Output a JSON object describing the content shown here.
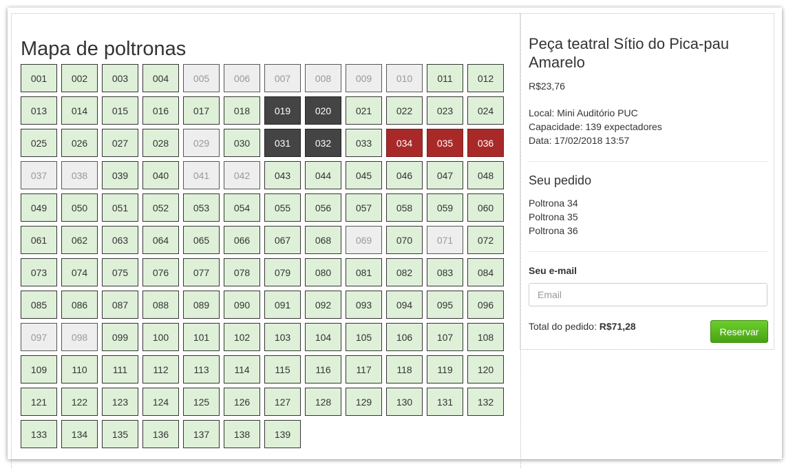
{
  "map": {
    "title": "Mapa de poltronas",
    "seats": [
      {
        "label": "001",
        "status": "available"
      },
      {
        "label": "002",
        "status": "available"
      },
      {
        "label": "003",
        "status": "available"
      },
      {
        "label": "004",
        "status": "available"
      },
      {
        "label": "005",
        "status": "occupied"
      },
      {
        "label": "006",
        "status": "occupied"
      },
      {
        "label": "007",
        "status": "occupied"
      },
      {
        "label": "008",
        "status": "occupied"
      },
      {
        "label": "009",
        "status": "occupied"
      },
      {
        "label": "010",
        "status": "occupied"
      },
      {
        "label": "011",
        "status": "available"
      },
      {
        "label": "012",
        "status": "available"
      },
      {
        "label": "013",
        "status": "available"
      },
      {
        "label": "014",
        "status": "available"
      },
      {
        "label": "015",
        "status": "available"
      },
      {
        "label": "016",
        "status": "available"
      },
      {
        "label": "017",
        "status": "available"
      },
      {
        "label": "018",
        "status": "available"
      },
      {
        "label": "019",
        "status": "dark"
      },
      {
        "label": "020",
        "status": "dark"
      },
      {
        "label": "021",
        "status": "available"
      },
      {
        "label": "022",
        "status": "available"
      },
      {
        "label": "023",
        "status": "available"
      },
      {
        "label": "024",
        "status": "available"
      },
      {
        "label": "025",
        "status": "available"
      },
      {
        "label": "026",
        "status": "available"
      },
      {
        "label": "027",
        "status": "available"
      },
      {
        "label": "028",
        "status": "available"
      },
      {
        "label": "029",
        "status": "occupied"
      },
      {
        "label": "030",
        "status": "available"
      },
      {
        "label": "031",
        "status": "dark"
      },
      {
        "label": "032",
        "status": "dark"
      },
      {
        "label": "033",
        "status": "available"
      },
      {
        "label": "034",
        "status": "selected"
      },
      {
        "label": "035",
        "status": "selected"
      },
      {
        "label": "036",
        "status": "selected"
      },
      {
        "label": "037",
        "status": "occupied"
      },
      {
        "label": "038",
        "status": "occupied"
      },
      {
        "label": "039",
        "status": "available"
      },
      {
        "label": "040",
        "status": "available"
      },
      {
        "label": "041",
        "status": "occupied"
      },
      {
        "label": "042",
        "status": "occupied"
      },
      {
        "label": "043",
        "status": "available"
      },
      {
        "label": "044",
        "status": "available"
      },
      {
        "label": "045",
        "status": "available"
      },
      {
        "label": "046",
        "status": "available"
      },
      {
        "label": "047",
        "status": "available"
      },
      {
        "label": "048",
        "status": "available"
      },
      {
        "label": "049",
        "status": "available"
      },
      {
        "label": "050",
        "status": "available"
      },
      {
        "label": "051",
        "status": "available"
      },
      {
        "label": "052",
        "status": "available"
      },
      {
        "label": "053",
        "status": "available"
      },
      {
        "label": "054",
        "status": "available"
      },
      {
        "label": "055",
        "status": "available"
      },
      {
        "label": "056",
        "status": "available"
      },
      {
        "label": "057",
        "status": "available"
      },
      {
        "label": "058",
        "status": "available"
      },
      {
        "label": "059",
        "status": "available"
      },
      {
        "label": "060",
        "status": "available"
      },
      {
        "label": "061",
        "status": "available"
      },
      {
        "label": "062",
        "status": "available"
      },
      {
        "label": "063",
        "status": "available"
      },
      {
        "label": "064",
        "status": "available"
      },
      {
        "label": "065",
        "status": "available"
      },
      {
        "label": "066",
        "status": "available"
      },
      {
        "label": "067",
        "status": "available"
      },
      {
        "label": "068",
        "status": "available"
      },
      {
        "label": "069",
        "status": "occupied"
      },
      {
        "label": "070",
        "status": "available"
      },
      {
        "label": "071",
        "status": "occupied"
      },
      {
        "label": "072",
        "status": "available"
      },
      {
        "label": "073",
        "status": "available"
      },
      {
        "label": "074",
        "status": "available"
      },
      {
        "label": "075",
        "status": "available"
      },
      {
        "label": "076",
        "status": "available"
      },
      {
        "label": "077",
        "status": "available"
      },
      {
        "label": "078",
        "status": "available"
      },
      {
        "label": "079",
        "status": "available"
      },
      {
        "label": "080",
        "status": "available"
      },
      {
        "label": "081",
        "status": "available"
      },
      {
        "label": "082",
        "status": "available"
      },
      {
        "label": "083",
        "status": "available"
      },
      {
        "label": "084",
        "status": "available"
      },
      {
        "label": "085",
        "status": "available"
      },
      {
        "label": "086",
        "status": "available"
      },
      {
        "label": "087",
        "status": "available"
      },
      {
        "label": "088",
        "status": "available"
      },
      {
        "label": "089",
        "status": "available"
      },
      {
        "label": "090",
        "status": "available"
      },
      {
        "label": "091",
        "status": "available"
      },
      {
        "label": "092",
        "status": "available"
      },
      {
        "label": "093",
        "status": "available"
      },
      {
        "label": "094",
        "status": "available"
      },
      {
        "label": "095",
        "status": "available"
      },
      {
        "label": "096",
        "status": "available"
      },
      {
        "label": "097",
        "status": "occupied"
      },
      {
        "label": "098",
        "status": "occupied"
      },
      {
        "label": "099",
        "status": "available"
      },
      {
        "label": "100",
        "status": "available"
      },
      {
        "label": "101",
        "status": "available"
      },
      {
        "label": "102",
        "status": "available"
      },
      {
        "label": "103",
        "status": "available"
      },
      {
        "label": "104",
        "status": "available"
      },
      {
        "label": "105",
        "status": "available"
      },
      {
        "label": "106",
        "status": "available"
      },
      {
        "label": "107",
        "status": "available"
      },
      {
        "label": "108",
        "status": "available"
      },
      {
        "label": "109",
        "status": "available"
      },
      {
        "label": "110",
        "status": "available"
      },
      {
        "label": "111",
        "status": "available"
      },
      {
        "label": "112",
        "status": "available"
      },
      {
        "label": "113",
        "status": "available"
      },
      {
        "label": "114",
        "status": "available"
      },
      {
        "label": "115",
        "status": "available"
      },
      {
        "label": "116",
        "status": "available"
      },
      {
        "label": "117",
        "status": "available"
      },
      {
        "label": "118",
        "status": "available"
      },
      {
        "label": "119",
        "status": "available"
      },
      {
        "label": "120",
        "status": "available"
      },
      {
        "label": "121",
        "status": "available"
      },
      {
        "label": "122",
        "status": "available"
      },
      {
        "label": "123",
        "status": "available"
      },
      {
        "label": "124",
        "status": "available"
      },
      {
        "label": "125",
        "status": "available"
      },
      {
        "label": "126",
        "status": "available"
      },
      {
        "label": "127",
        "status": "available"
      },
      {
        "label": "128",
        "status": "available"
      },
      {
        "label": "129",
        "status": "available"
      },
      {
        "label": "130",
        "status": "available"
      },
      {
        "label": "131",
        "status": "available"
      },
      {
        "label": "132",
        "status": "available"
      },
      {
        "label": "133",
        "status": "available"
      },
      {
        "label": "134",
        "status": "available"
      },
      {
        "label": "135",
        "status": "available"
      },
      {
        "label": "136",
        "status": "available"
      },
      {
        "label": "137",
        "status": "available"
      },
      {
        "label": "138",
        "status": "available"
      },
      {
        "label": "139",
        "status": "available"
      }
    ]
  },
  "event": {
    "title": "Peça teatral Sítio do Pica-pau Amarelo",
    "price": "R$23,76",
    "local": "Local: Mini Auditório PUC",
    "capacity": "Capacidade: 139 expectadores",
    "date": "Data: 17/02/2018 13:57"
  },
  "order": {
    "title": "Seu pedido",
    "items": [
      "Poltrona 34",
      "Poltrona 35",
      "Poltrona 36"
    ]
  },
  "email": {
    "label": "Seu e-mail",
    "placeholder": "Email",
    "value": ""
  },
  "total": {
    "label": "Total do pedido:",
    "value": "R$71,28"
  },
  "reserve_button": "Reservar",
  "colors": {
    "available": "#dff0d8",
    "occupied": "#eeeeee",
    "dark": "#444444",
    "selected": "#a92929",
    "button": "#5cb520"
  }
}
